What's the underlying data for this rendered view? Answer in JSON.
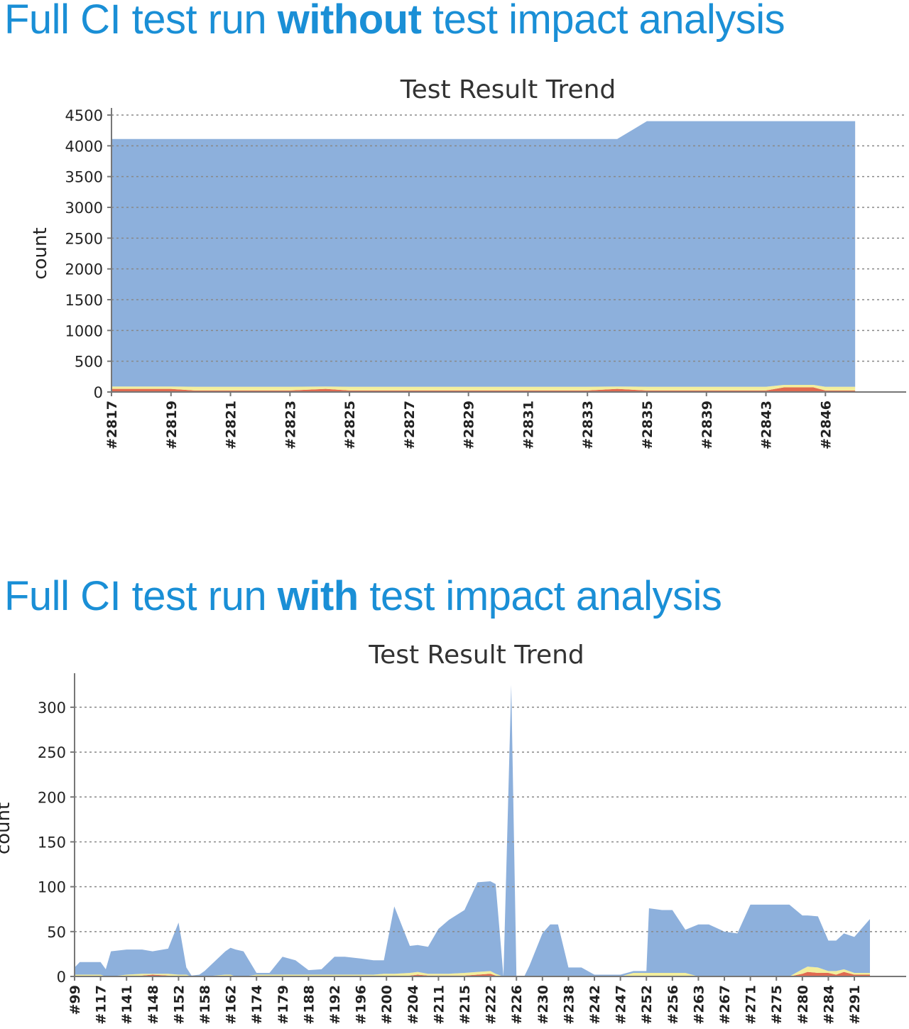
{
  "headings": [
    {
      "pre": "Full CI test run ",
      "bold": "without",
      "post": " test impact analysis"
    },
    {
      "pre": "Full CI test run ",
      "bold": "with",
      "post": " test impact analysis"
    }
  ],
  "colors": {
    "heading": "#1a8fd6",
    "pass": "#8db0dc",
    "skip": "#f3ee9c",
    "fail": "#e06a50"
  },
  "chart_data": [
    {
      "type": "area",
      "stacked": true,
      "title": "Test Result Trend",
      "xlabel": "",
      "ylabel": "count",
      "ylim": [
        0,
        4500
      ],
      "yticks": [
        0,
        500,
        1000,
        1500,
        2000,
        2500,
        3000,
        3500,
        4000,
        4500
      ],
      "grid": true,
      "categories": [
        "#2817",
        "#2819",
        "#2821",
        "#2823",
        "#2825",
        "#2827",
        "#2829",
        "#2831",
        "#2833",
        "#2835",
        "#2839",
        "#2843",
        "#2846"
      ],
      "x": [
        0,
        0.3,
        1,
        1.4,
        2,
        3,
        3.6,
        4,
        5,
        6,
        7,
        8,
        8.5,
        9,
        9.5,
        10,
        10.5,
        11,
        11.3,
        11.8,
        12,
        12.5
      ],
      "series": [
        {
          "values": [
            50,
            50,
            50,
            25,
            25,
            25,
            50,
            25,
            25,
            25,
            25,
            25,
            50,
            25,
            25,
            25,
            25,
            25,
            75,
            75,
            25,
            25
          ]
        },
        {
          "values": [
            40,
            40,
            40,
            60,
            60,
            60,
            40,
            60,
            60,
            60,
            60,
            60,
            40,
            60,
            60,
            60,
            60,
            60,
            40,
            40,
            60,
            60
          ]
        },
        {
          "values": [
            4020,
            4020,
            4020,
            4025,
            4025,
            4025,
            4020,
            4025,
            4025,
            4025,
            4025,
            4025,
            4020,
            4315,
            4315,
            4315,
            4315,
            4315,
            4285,
            4285,
            4315,
            4315
          ]
        }
      ]
    },
    {
      "type": "area",
      "stacked": true,
      "title": "Test Result Trend",
      "xlabel": "",
      "ylabel": "count",
      "ylim": [
        0,
        330
      ],
      "yticks": [
        0,
        50,
        100,
        150,
        200,
        250,
        300
      ],
      "grid": true,
      "categories": [
        "#99",
        "#117",
        "#141",
        "#148",
        "#152",
        "#158",
        "#162",
        "#174",
        "#179",
        "#188",
        "#192",
        "#196",
        "#200",
        "#204",
        "#211",
        "#215",
        "#222",
        "#226",
        "#230",
        "#238",
        "#242",
        "#247",
        "#252",
        "#256",
        "#263",
        "#267",
        "#271",
        "#275",
        "#280",
        "#284",
        "#291"
      ],
      "x": [
        0,
        0.2,
        1,
        1.2,
        1.4,
        2,
        2.6,
        3,
        3.6,
        4,
        4.3,
        4.5,
        4.8,
        5,
        5.8,
        6,
        6.2,
        6.5,
        7,
        7.5,
        8,
        8.5,
        9,
        9.5,
        10,
        10.4,
        11,
        11.5,
        11.9,
        12.3,
        12.9,
        13.2,
        13.6,
        14,
        14.4,
        15,
        15.5,
        16,
        16.2,
        16.5,
        16.8,
        17,
        17.3,
        17.5,
        18,
        18.3,
        18.6,
        19,
        19.5,
        20,
        20.5,
        21,
        21.5,
        22,
        22.1,
        22.6,
        23,
        23.5,
        24,
        24.4,
        25,
        25.5,
        26,
        26.5,
        27,
        27.5,
        28,
        28.2,
        28.6,
        29,
        29.3,
        29.6,
        30,
        30.6
      ],
      "series": [
        {
          "values": [
            0,
            0,
            0,
            0,
            0,
            0,
            1,
            2,
            1,
            0,
            0,
            0,
            0,
            0,
            0,
            0,
            0,
            0,
            0,
            0,
            0,
            0,
            0,
            0,
            0,
            0,
            0,
            0,
            0,
            0,
            1,
            2,
            1,
            1,
            1,
            1,
            2,
            3,
            1,
            0,
            0,
            0,
            0,
            0,
            0,
            0,
            0,
            0,
            0,
            0,
            0,
            0,
            0,
            0,
            0,
            0,
            0,
            0,
            0,
            0,
            0,
            0,
            0,
            0,
            0,
            0,
            3,
            5,
            4,
            4,
            2,
            5,
            2,
            2
          ]
        },
        {
          "values": [
            2,
            2,
            2,
            0,
            0,
            2,
            2,
            1,
            2,
            2,
            2,
            0,
            0,
            0,
            2,
            2,
            0,
            0,
            2,
            2,
            2,
            2,
            2,
            2,
            2,
            2,
            2,
            2,
            3,
            3,
            3,
            3,
            2,
            2,
            2,
            3,
            3,
            3,
            2,
            0,
            0,
            0,
            0,
            0,
            0,
            0,
            0,
            0,
            0,
            0,
            0,
            0,
            4,
            4,
            4,
            4,
            4,
            4,
            0,
            0,
            0,
            0,
            0,
            0,
            0,
            0,
            5,
            6,
            6,
            2,
            4,
            3,
            2,
            2
          ]
        },
        {
          "values": [
            8,
            14,
            14,
            8,
            28,
            28,
            27,
            25,
            28,
            58,
            8,
            1,
            2,
            6,
            26,
            30,
            30,
            28,
            2,
            2,
            20,
            16,
            5,
            6,
            20,
            20,
            18,
            16,
            15,
            75,
            30,
            30,
            30,
            50,
            60,
            70,
            100,
            100,
            100,
            0,
            325,
            0,
            0,
            12,
            48,
            58,
            58,
            10,
            10,
            2,
            2,
            2,
            2,
            2,
            72,
            70,
            70,
            48,
            58,
            58,
            50,
            48,
            80,
            80,
            80,
            80,
            60,
            57,
            57,
            34,
            34,
            40,
            40,
            60
          ]
        }
      ]
    }
  ]
}
